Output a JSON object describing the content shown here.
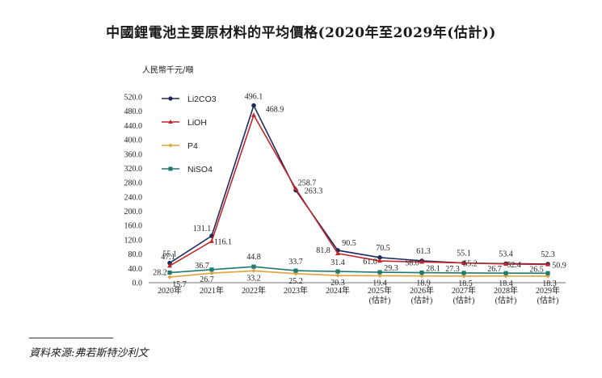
{
  "title": "中國鋰電池主要原材料的平均價格(2020年至2029年(估計))",
  "unit_label": "人民幣千元/噸",
  "source": "資料來源:弗若斯特沙利文",
  "colors": {
    "Li2CO3": "#1f2a5c",
    "LiOH": "#c0262d",
    "P4": "#e0a23a",
    "NiSO4": "#1f7a6e"
  },
  "chart_data": {
    "type": "line",
    "title": "中國鋰電池主要原材料的平均價格(2020年至2029年(估計))",
    "ylabel": "人民幣千元/噸",
    "xlabel": "",
    "ylim": [
      0,
      520
    ],
    "yticks": [
      "0.0",
      "40.0",
      "80.0",
      "120.0",
      "160.0",
      "200.0",
      "240.0",
      "280.0",
      "320.0",
      "360.0",
      "400.0",
      "440.0",
      "480.0",
      "520.0"
    ],
    "categories": [
      [
        "2020年"
      ],
      [
        "2021年"
      ],
      [
        "2022年"
      ],
      [
        "2023年"
      ],
      [
        "2024年"
      ],
      [
        "2025年",
        "(估計)"
      ],
      [
        "2026年",
        "(估計)"
      ],
      [
        "2027年",
        "(估計)"
      ],
      [
        "2028年",
        "(估計)"
      ],
      [
        "2029年",
        "(估計)"
      ]
    ],
    "legend_position": "top-left",
    "series": [
      {
        "name": "Li2CO3",
        "values": [
          55.1,
          131.1,
          496.1,
          258.7,
          90.5,
          70.5,
          61.3,
          55.1,
          53.4,
          52.3
        ]
      },
      {
        "name": "LiOH",
        "values": [
          47.1,
          116.1,
          468.9,
          263.3,
          81.8,
          61.0,
          58.0,
          55.2,
          52.4,
          50.9
        ]
      },
      {
        "name": "P4",
        "values": [
          15.7,
          26.7,
          33.2,
          25.2,
          20.3,
          19.4,
          18.9,
          18.5,
          18.4,
          18.3
        ]
      },
      {
        "name": "NiSO4",
        "values": [
          28.2,
          36.7,
          44.8,
          33.7,
          31.4,
          29.3,
          28.1,
          27.3,
          26.7,
          26.5
        ]
      }
    ],
    "labels": [
      {
        "text": "55.1"
      },
      {
        "text": "131.1"
      },
      {
        "text": "496.1"
      },
      {
        "text": "258.7"
      },
      {
        "text": "90.5"
      },
      {
        "text": "70.5"
      },
      {
        "text": "61.3"
      },
      {
        "text": "55.1"
      },
      {
        "text": "53.4"
      },
      {
        "text": "52.3"
      },
      {
        "text": "47.1"
      },
      {
        "text": "116.1"
      },
      {
        "text": "468.9"
      },
      {
        "text": "263.3"
      },
      {
        "text": "81.8"
      },
      {
        "text": "61.0"
      },
      {
        "text": "58.0"
      },
      {
        "text": "55.2"
      },
      {
        "text": "52.4"
      },
      {
        "text": "50.9"
      },
      {
        "text": "15.7"
      },
      {
        "text": "26.7"
      },
      {
        "text": "33.2"
      },
      {
        "text": "25.2"
      },
      {
        "text": "20.3"
      },
      {
        "text": "19.4"
      },
      {
        "text": "18.9"
      },
      {
        "text": "18.5"
      },
      {
        "text": "18.4"
      },
      {
        "text": "18.3"
      },
      {
        "text": "28.2"
      },
      {
        "text": "36.7"
      },
      {
        "text": "44.8"
      },
      {
        "text": "33.7"
      },
      {
        "text": "31.4"
      },
      {
        "text": "29.3"
      },
      {
        "text": "28.1"
      },
      {
        "text": "27.3"
      },
      {
        "text": "26.7"
      },
      {
        "text": "26.5"
      }
    ]
  }
}
